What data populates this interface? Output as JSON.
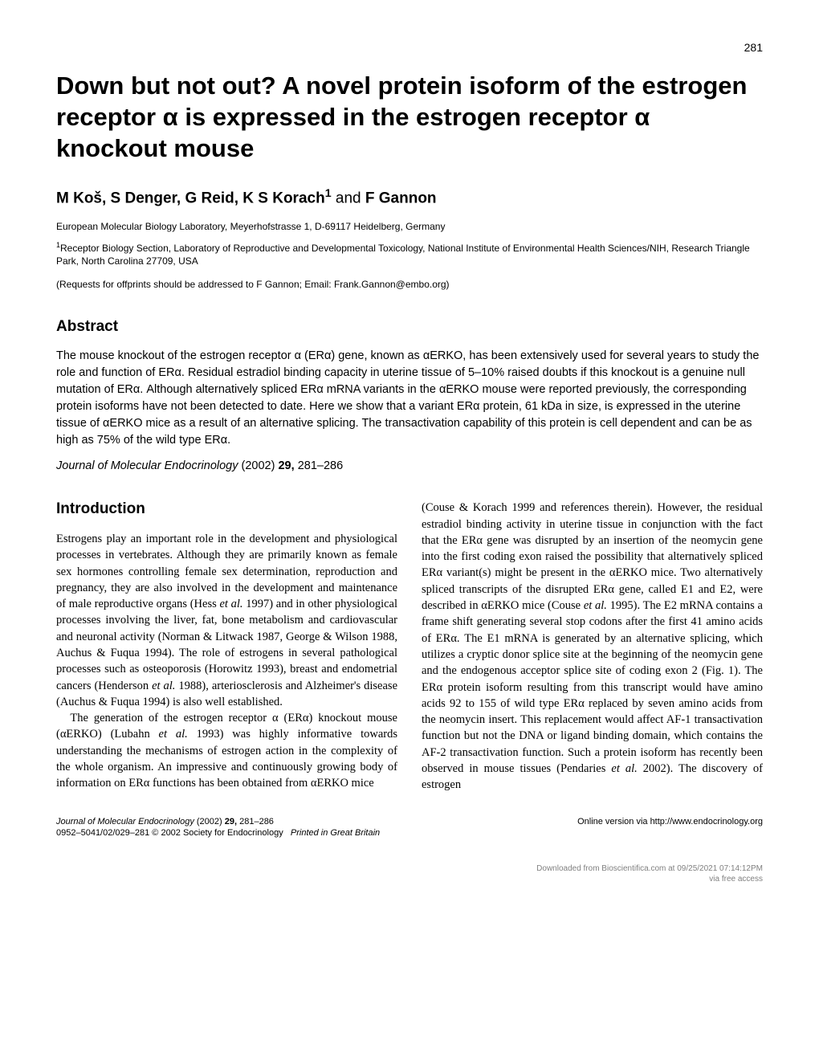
{
  "pageNumber": "281",
  "title": "Down but not out? A novel protein isoform of the estrogen receptor α is expressed in the estrogen receptor α knockout mouse",
  "authors": "M Koš, S Denger, G Reid, K S Korach¹ and F Gannon",
  "affiliation1": "European Molecular Biology Laboratory, Meyerhofstrasse 1, D-69117 Heidelberg, Germany",
  "affiliation2": "¹Receptor Biology Section, Laboratory of Reproductive and Developmental Toxicology, National Institute of Environmental Health Sciences/NIH, Research Triangle Park, North Carolina 27709, USA",
  "requests": "(Requests for offprints should be addressed to F Gannon; Email: Frank.Gannon@embo.org)",
  "abstract_heading": "Abstract",
  "abstract_text": "The mouse knockout of the estrogen receptor α (ERα) gene, known as αERKO, has been extensively used for several years to study the role and function of ERα. Residual estradiol binding capacity in uterine tissue of 5–10% raised doubts if this knockout is a genuine null mutation of ERα. Although alternatively spliced ERα mRNA variants in the αERKO mouse were reported previously, the corresponding protein isoforms have not been detected to date. Here we show that a variant ERα protein, 61 kDa in size, is expressed in the uterine tissue of αERKO mice as a result of an alternative splicing. The transactivation capability of this protein is cell dependent and can be as high as 75% of the wild type ERα.",
  "citation_journal": "Journal of Molecular Endocrinology",
  "citation_year": "(2002)",
  "citation_volume": "29,",
  "citation_pages": "281–286",
  "intro_heading": "Introduction",
  "intro_para1": "Estrogens play an important role in the development and physiological processes in vertebrates. Although they are primarily known as female sex hormones controlling female sex determination, reproduction and pregnancy, they are also involved in the development and maintenance of male reproductive organs (Hess et al. 1997) and in other physiological processes involving the liver, fat, bone metabolism and cardiovascular and neuronal activity (Norman & Litwack 1987, George & Wilson 1988, Auchus & Fuqua 1994). The role of estrogens in several pathological processes such as osteoporosis (Horowitz 1993), breast and endometrial cancers (Henderson et al. 1988), arteriosclerosis and Alzheimer's disease (Auchus & Fuqua 1994) is also well established.",
  "intro_para2": "The generation of the estrogen receptor α (ERα) knockout mouse (αERKO) (Lubahn et al. 1993) was highly informative towards understanding the mechanisms of estrogen action in the complexity of the whole organism. An impressive and continuously growing body of information on ERα functions has been obtained from αERKO mice",
  "col2_text": "(Couse & Korach 1999 and references therein). However, the residual estradiol binding activity in uterine tissue in conjunction with the fact that the ERα gene was disrupted by an insertion of the neomycin gene into the first coding exon raised the possibility that alternatively spliced ERα variant(s) might be present in the αERKO mice. Two alternatively spliced transcripts of the disrupted ERα gene, called E1 and E2, were described in αERKO mice (Couse et al. 1995). The E2 mRNA contains a frame shift generating several stop codons after the first 41 amino acids of ERα. The E1 mRNA is generated by an alternative splicing, which utilizes a cryptic donor splice site at the beginning of the neomycin gene and the endogenous acceptor splice site of coding exon 2 (Fig. 1). The ERα protein isoform resulting from this transcript would have amino acids 92 to 155 of wild type ERα replaced by seven amino acids from the neomycin insert. This replacement would affect AF-1 transactivation function but not the DNA or ligand binding domain, which contains the AF-2 transactivation function. Such a protein isoform has recently been observed in mouse tissues (Pendaries et al. 2002). The discovery of estrogen",
  "footer_journal": "Journal of Molecular Endocrinology",
  "footer_year_vol": "(2002) ",
  "footer_vol": "29,",
  "footer_pages": " 281–286",
  "footer_issn": "0952–5041/02/029–281 © 2002 Society for Endocrinology",
  "footer_printed": "Printed in Great Britain",
  "footer_online": "Online version via http://www.endocrinology.org",
  "bottom_line1": "Downloaded from Bioscientifica.com at 09/25/2021 07:14:12PM",
  "bottom_line2": "via free access"
}
